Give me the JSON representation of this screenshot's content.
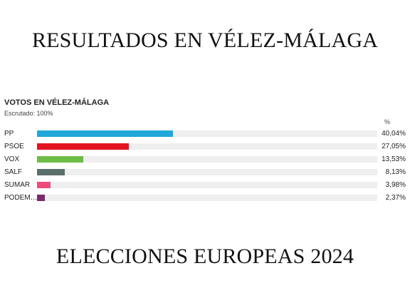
{
  "headline_top": "RESULTADOS EN VÉLEZ-MÁLAGA",
  "headline_bottom": "ELECCIONES EUROPEAS 2024",
  "chart_data": {
    "type": "bar",
    "orientation": "horizontal",
    "title": "VOTOS EN VÉLEZ-MÁLAGA",
    "subtitle": "Escrutado: 100%",
    "value_header": "%",
    "xlim": [
      0,
      100
    ],
    "categories": [
      "PP",
      "PSOE",
      "VOX",
      "SALF",
      "SUMAR",
      "PODEM…"
    ],
    "values": [
      40.04,
      27.05,
      13.53,
      8.13,
      3.98,
      2.37
    ],
    "value_labels": [
      "40,04%",
      "27,05%",
      "13,53%",
      "8,13%",
      "3,98%",
      "2,37%"
    ],
    "colors": [
      "#1fa8d9",
      "#e3141f",
      "#6cbd45",
      "#5a6e6b",
      "#ef4b7a",
      "#7a2a6e"
    ],
    "track_color": "#efefef"
  }
}
